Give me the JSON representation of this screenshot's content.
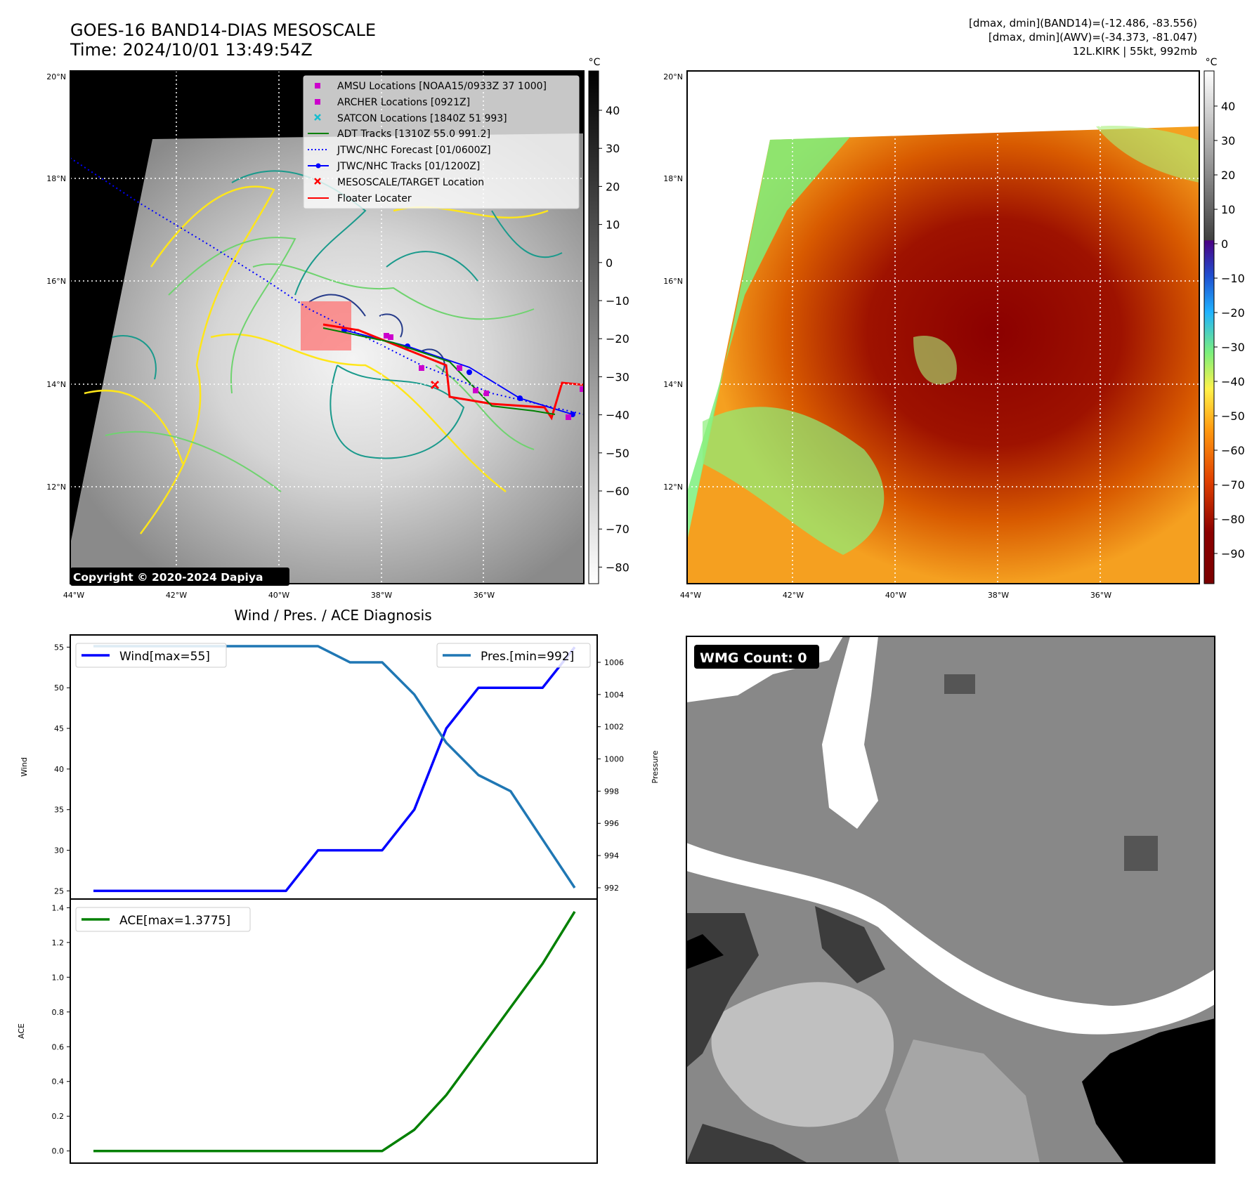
{
  "header": {
    "title": "GOES-16 BAND14-DIAS MESOSCALE",
    "time": "Time: 2024/10/01 13:49:54Z",
    "stat_band14": "[dmax, dmin](BAND14)=(-12.486, -83.556)",
    "stat_awv": "[dmax, dmin](AWV)=(-34.373, -81.047)",
    "storm": "12L.KIRK | 55kt, 992mb"
  },
  "map_axes": {
    "lat_labels": [
      "20°N",
      "18°N",
      "16°N",
      "14°N",
      "12°N"
    ],
    "lon_labels": [
      "44°W",
      "42°W",
      "40°W",
      "38°W",
      "36°W"
    ],
    "colorbar_unit": "°C",
    "ir_colorbar_ticks": [
      "40",
      "30",
      "20",
      "10",
      "0",
      "−10",
      "−20",
      "−30",
      "−40",
      "−50",
      "−60",
      "−70",
      "−80"
    ],
    "awv_colorbar_ticks": [
      "40",
      "30",
      "20",
      "10",
      "0",
      "−10",
      "−20",
      "−30",
      "−40",
      "−50",
      "−60",
      "−70",
      "−80",
      "−90"
    ]
  },
  "legend": [
    {
      "label": "AMSU Locations [NOAA15/0933Z 37 1000]",
      "marker": "square",
      "color": "#cc00cc"
    },
    {
      "label": "ARCHER Locations [0921Z]",
      "marker": "square",
      "color": "#cc00cc"
    },
    {
      "label": "SATCON Locations [1840Z 51 993]",
      "marker": "x",
      "color": "#17becf"
    },
    {
      "label": "ADT Tracks [1310Z 55.0 991.2]",
      "marker": "line",
      "color": "#008000"
    },
    {
      "label": "JTWC/NHC Forecast [01/0600Z]",
      "marker": "dotted",
      "color": "#0000ff"
    },
    {
      "label": "JTWC/NHC Tracks [01/1200Z]",
      "marker": "line-dot",
      "color": "#0000ff"
    },
    {
      "label": "MESOSCALE/TARGET Location",
      "marker": "x",
      "color": "#ff0000"
    },
    {
      "label": "Floater Locater",
      "marker": "line",
      "color": "#ff0000"
    }
  ],
  "copyright": "Copyright © 2020-2024 Dapiya",
  "wmg_label": "WMG Count: 0",
  "diagnosis_title": "Wind / Pres. / ACE Diagnosis",
  "chart_data": [
    {
      "type": "line",
      "title": "Wind / Pres. / ACE Diagnosis",
      "x": [
        0,
        1,
        2,
        3,
        4,
        5,
        6,
        7,
        8,
        9,
        10,
        11,
        12,
        13,
        14,
        15
      ],
      "series": [
        {
          "name": "Wind[max=55]",
          "axis": "left",
          "color": "#0000ff",
          "values": [
            25,
            25,
            25,
            25,
            25,
            25,
            25,
            30,
            30,
            30,
            35,
            45,
            50,
            50,
            50,
            55
          ]
        },
        {
          "name": "Pres.[min=992]",
          "axis": "right",
          "color": "#1f77b4",
          "values": [
            1007,
            1007,
            1007,
            1007,
            1007,
            1007,
            1007,
            1007,
            1006,
            1006,
            1004,
            1001,
            999,
            998,
            995,
            992
          ]
        }
      ],
      "ylabel": "Wind",
      "ylim": [
        24,
        56.5
      ],
      "yticks": [
        25,
        30,
        35,
        40,
        45,
        50,
        55
      ],
      "y2label": "Pressure",
      "y2lim": [
        991.3,
        1007.7
      ],
      "y2ticks": [
        992,
        994,
        996,
        998,
        1000,
        1002,
        1004,
        1006
      ],
      "legend": [
        "upper-left",
        "upper-right"
      ]
    },
    {
      "type": "line",
      "x": [
        0,
        1,
        2,
        3,
        4,
        5,
        6,
        7,
        8,
        9,
        10,
        11,
        12,
        13,
        14,
        15
      ],
      "series": [
        {
          "name": "ACE[max=1.3775]",
          "color": "#008000",
          "values": [
            0,
            0,
            0,
            0,
            0,
            0,
            0,
            0,
            0,
            0,
            0.122,
            0.322,
            0.573,
            0.826,
            1.078,
            1.3775
          ]
        }
      ],
      "ylabel": "ACE",
      "ylim": [
        -0.07,
        1.45
      ],
      "yticks": [
        "0.0",
        "0.2",
        "0.4",
        "0.6",
        "0.8",
        "1.0",
        "1.2",
        "1.4"
      ],
      "legend": "upper-left"
    }
  ]
}
